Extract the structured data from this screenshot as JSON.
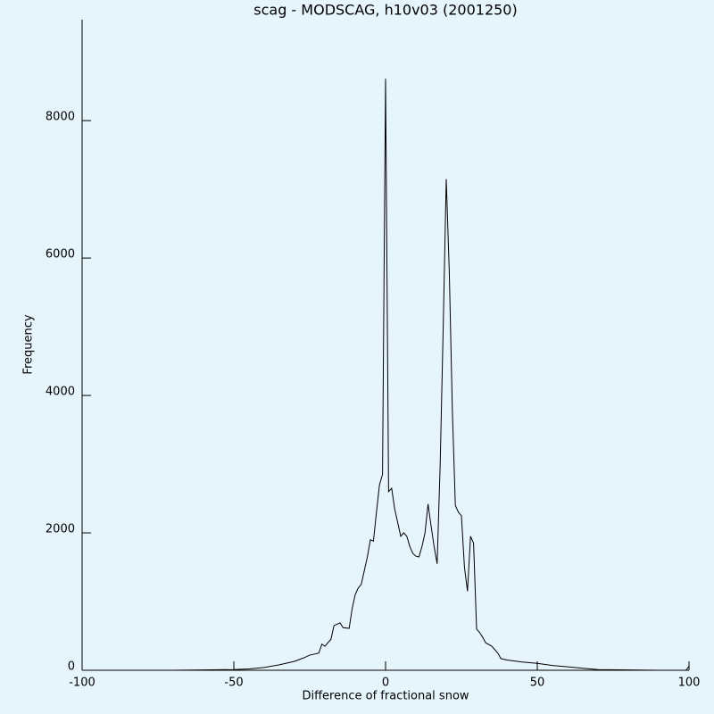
{
  "chart_data": {
    "type": "line",
    "title": "scag - MODSCAG, h10v03 (2001250)",
    "x_label": "Difference of fractional snow",
    "y_label": "Frequency",
    "xlim": [
      -100,
      100
    ],
    "xticks": [
      -100,
      -50,
      0,
      50,
      100
    ],
    "ylim": [
      0,
      9470
    ],
    "yticks": [
      0,
      2000,
      4000,
      6000,
      8000
    ],
    "x": [
      -100,
      -90,
      -80,
      -70,
      -60,
      -50,
      -45,
      -40,
      -35,
      -30,
      -27,
      -25,
      -22,
      -21,
      -20,
      -18,
      -17,
      -15,
      -14,
      -12,
      -11,
      -10,
      -9,
      -8,
      -7,
      -6,
      -5,
      -4,
      -3,
      -2,
      -1,
      0,
      1,
      2,
      3,
      4,
      5,
      6,
      7,
      8,
      9,
      10,
      11,
      12,
      13,
      14,
      15,
      16,
      17,
      18,
      19,
      20,
      21,
      22,
      23,
      24,
      25,
      26,
      27,
      28,
      29,
      30,
      31,
      32,
      33,
      35,
      37,
      38,
      40,
      45,
      50,
      55,
      60,
      65,
      70,
      80,
      90,
      99,
      100
    ],
    "series": [
      {
        "name": "Frequency",
        "color": "#000000",
        "values": [
          0,
          0,
          0,
          0,
          5,
          10,
          20,
          40,
          80,
          130,
          180,
          220,
          250,
          380,
          350,
          450,
          650,
          690,
          620,
          610,
          900,
          1100,
          1200,
          1250,
          1450,
          1650,
          1900,
          1880,
          2300,
          2700,
          2850,
          8610,
          2600,
          2650,
          2350,
          2150,
          1950,
          2000,
          1950,
          1800,
          1700,
          1660,
          1650,
          1800,
          2000,
          2420,
          2100,
          1800,
          1550,
          3000,
          5000,
          7150,
          5800,
          3800,
          2400,
          2300,
          2250,
          1500,
          1150,
          1950,
          1850,
          600,
          550,
          480,
          400,
          350,
          250,
          170,
          150,
          120,
          100,
          70,
          50,
          30,
          10,
          5,
          0,
          0,
          60
        ]
      }
    ]
  }
}
